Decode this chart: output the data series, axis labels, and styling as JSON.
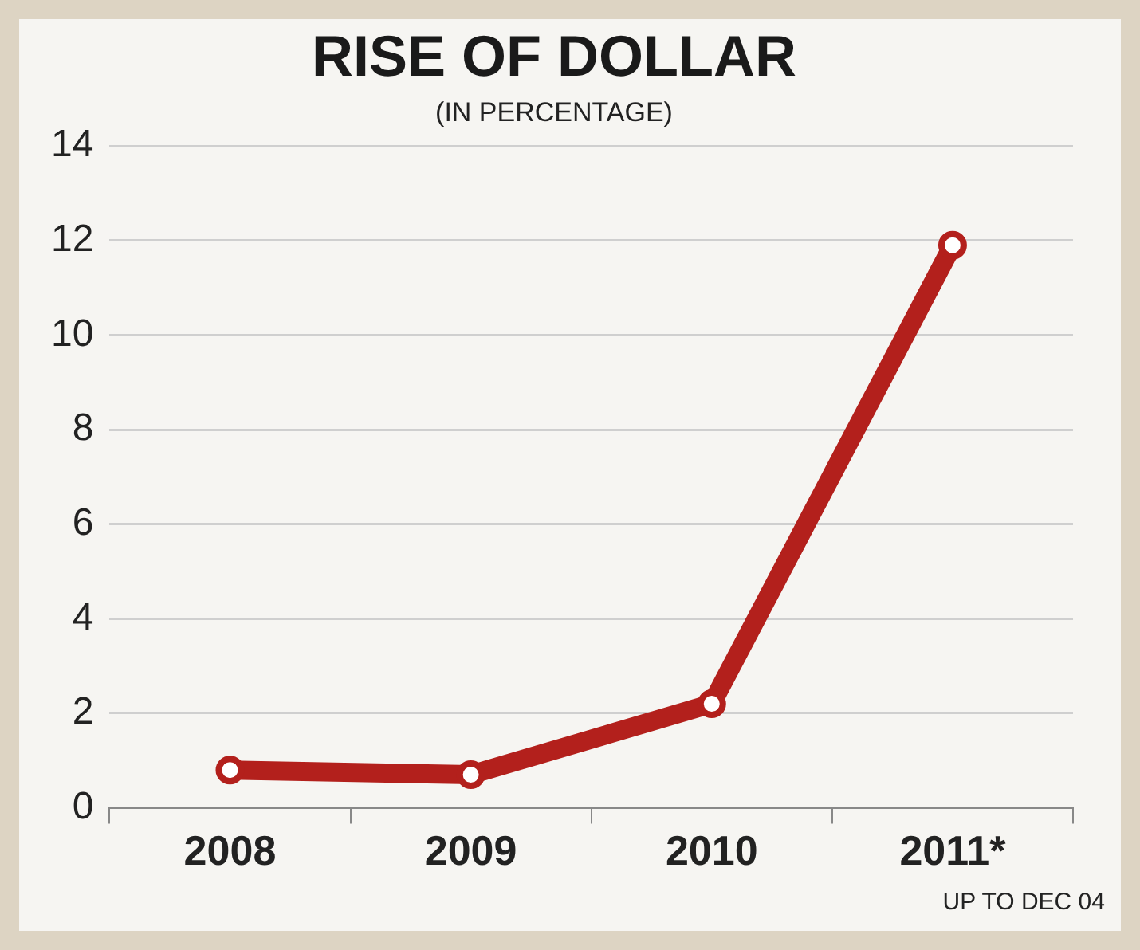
{
  "chart_data": {
    "type": "line",
    "title": "RISE OF DOLLAR",
    "subtitle": "(IN PERCENTAGE)",
    "categories": [
      "2008",
      "2009",
      "2010",
      "2011*"
    ],
    "series": [
      {
        "color": "#b3201c",
        "values": [
          0.8,
          0.7,
          2.2,
          11.9
        ]
      }
    ],
    "ylim": [
      0,
      14
    ],
    "yticks": [
      0,
      2,
      4,
      6,
      8,
      10,
      12,
      14
    ],
    "grid": "y",
    "legend": false,
    "marker": "circle",
    "line_style": "solid",
    "annotations": [
      "UP TO DEC 04"
    ]
  }
}
